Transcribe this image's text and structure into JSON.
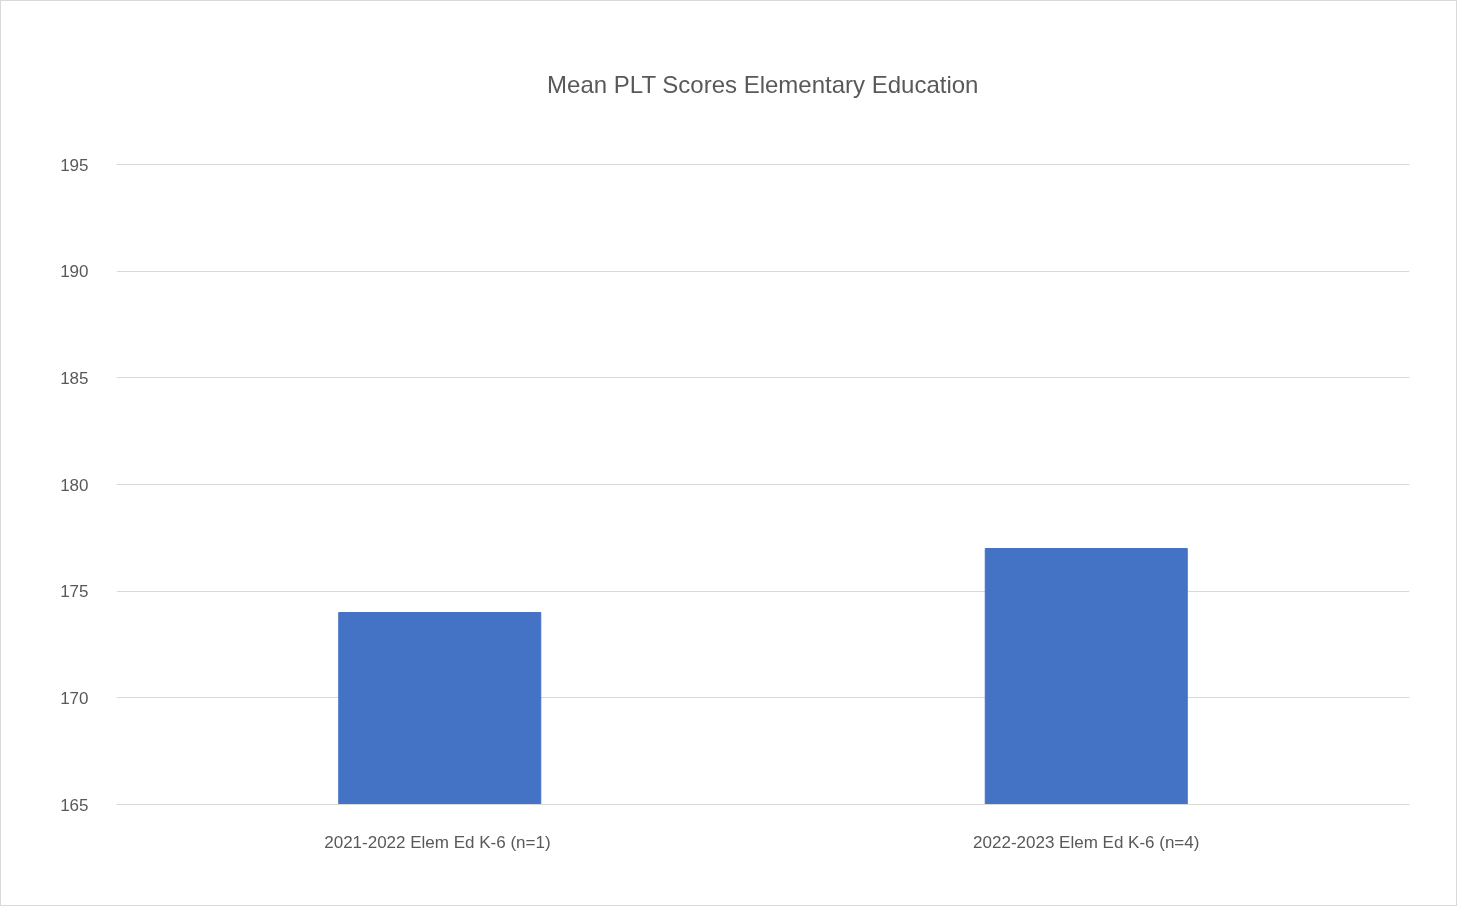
{
  "chart_data": {
    "type": "bar",
    "title": "Mean PLT Scores Elementary Education",
    "categories": [
      "2021-2022 Elem Ed K-6  (n=1)",
      "2022-2023 Elem Ed K-6 (n=4)"
    ],
    "values": [
      174,
      177
    ],
    "color": "#4472c4",
    "ylim": [
      165,
      195
    ],
    "yticks": [
      165,
      170,
      175,
      180,
      185,
      190,
      195
    ],
    "grid": "y"
  }
}
